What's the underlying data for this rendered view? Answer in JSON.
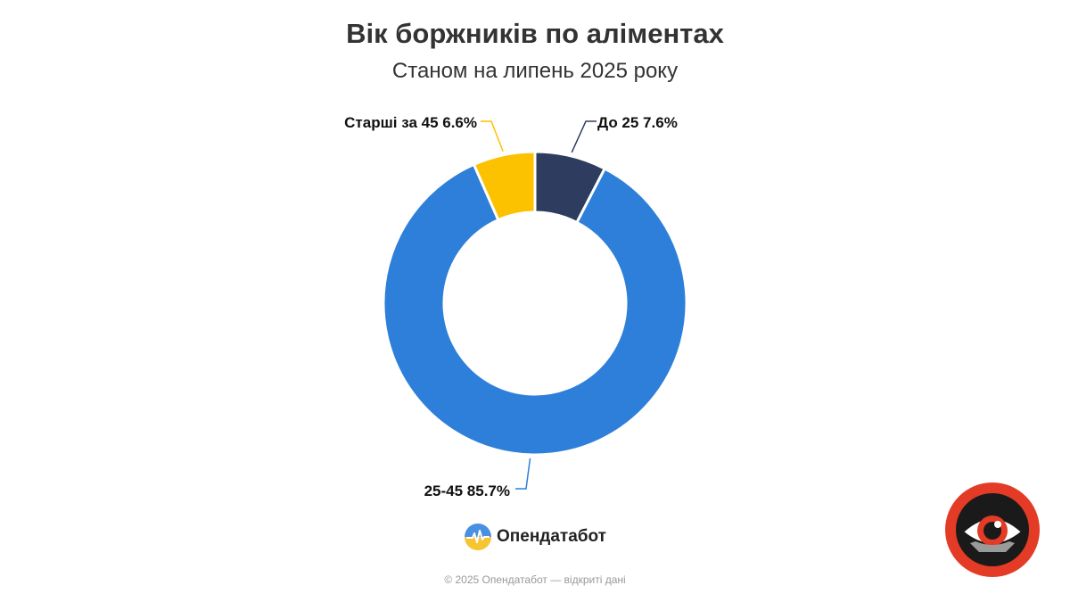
{
  "chart_data": {
    "type": "pie",
    "donut": true,
    "title": "Вік боржників по аліментах",
    "subtitle": "Станом на липень 2025 року",
    "categories": [
      "До 25",
      "25-45",
      "Старші за 45"
    ],
    "values": [
      7.6,
      85.7,
      6.6
    ],
    "labels": [
      "До 25 7.6%",
      "25-45 85.7%",
      "Старші за 45 6.6%"
    ],
    "colors": [
      "#2e3d5f",
      "#2e7fd9",
      "#fcc200"
    ],
    "legend": "none"
  },
  "brand": {
    "name": "Опендатабот",
    "icon": "opendatabot-logo-icon"
  },
  "footer": {
    "text": "© 2025 Опендатабот — відкриті дані"
  },
  "watermark": {
    "icon": "eye-logo-icon",
    "colors": [
      "#e33b25",
      "#1a1a1a",
      "#ffffff"
    ]
  }
}
